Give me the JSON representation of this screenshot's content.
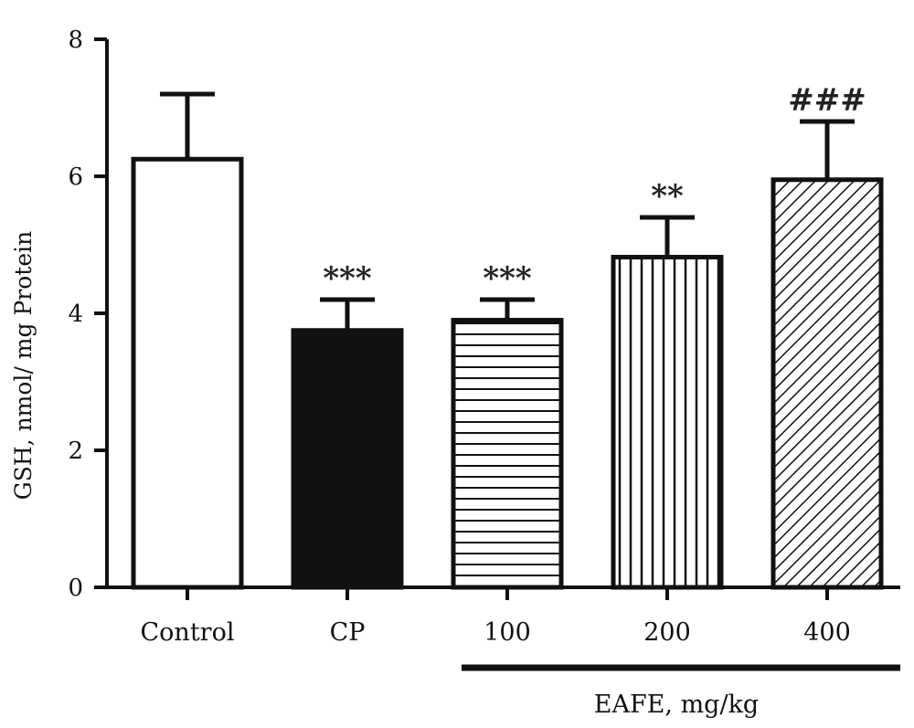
{
  "chart_data": {
    "type": "bar",
    "title": "",
    "xlabel": "",
    "ylabel": "GSH, nmol/ mg Protein",
    "ylim": [
      0,
      8
    ],
    "yticks": [
      0,
      2,
      4,
      6,
      8
    ],
    "categories": [
      "Control",
      "CP",
      "100",
      "200",
      "400"
    ],
    "values": [
      6.25,
      3.75,
      3.9,
      4.82,
      5.95
    ],
    "errors": [
      0.95,
      0.45,
      0.3,
      0.58,
      0.85
    ],
    "fills": [
      "white",
      "black",
      "horizontal-stripes",
      "vertical-stripes",
      "diagonal-stripes"
    ],
    "annotations": [
      "",
      "***",
      "***",
      "**",
      "###"
    ],
    "group": {
      "label": "EAFE, mg/kg",
      "categories": [
        "100",
        "200",
        "400"
      ]
    },
    "grid": false,
    "legend": "none"
  }
}
